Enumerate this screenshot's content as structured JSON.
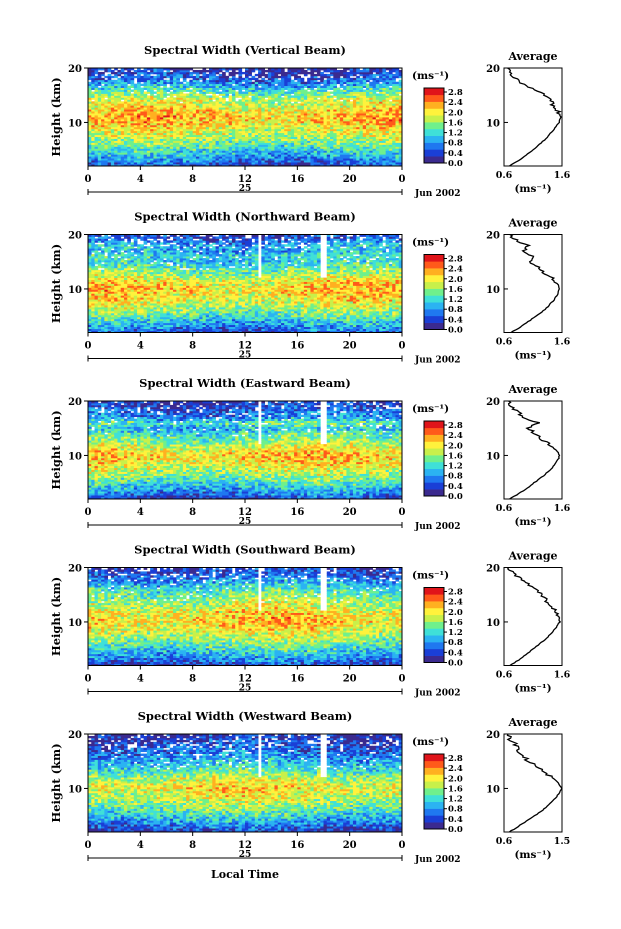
{
  "figure": {
    "xlabel_bottom": "Local Time",
    "date_label": "Jun 2002",
    "day_label": "25",
    "ylabel": "Height (km)",
    "units_label": "(ms⁻¹)",
    "avg_title": "Average",
    "avg_xlabel": "(ms⁻¹)",
    "colorbar_ticks": [
      "2.8",
      "2.4",
      "2.0",
      "1.6",
      "1.2",
      "0.8",
      "0.4",
      "0.0"
    ],
    "colormap": [
      "#3b2a8f",
      "#1a3fd6",
      "#1f78f0",
      "#2bb3f2",
      "#3fe0d8",
      "#6ff08c",
      "#c8f04a",
      "#fff23c",
      "#ffb020",
      "#ff5a1a",
      "#e0141a"
    ]
  },
  "chart_data": [
    {
      "type": "heatmap",
      "title": "Spectral Width (Vertical Beam)",
      "x_ticks": [
        "0",
        "4",
        "8",
        "12",
        "16",
        "20",
        "0"
      ],
      "xlim": [
        0,
        24
      ],
      "y_ticks": [
        "20",
        "10"
      ],
      "ylim": [
        2,
        20
      ],
      "clim": [
        0.0,
        3.0
      ],
      "avg_profile": {
        "x_ticks": [
          "0.6",
          "1.6"
        ],
        "xlim": [
          0.6,
          1.6
        ],
        "y_ticks": [
          "20",
          "10"
        ],
        "height": [
          2,
          3,
          4,
          5,
          6,
          7,
          8,
          9,
          10,
          11,
          12,
          13,
          14,
          15,
          16,
          17,
          18,
          19,
          20
        ],
        "value": [
          0.7,
          0.85,
          0.98,
          1.1,
          1.22,
          1.32,
          1.4,
          1.48,
          1.55,
          1.58,
          1.54,
          1.45,
          1.42,
          1.3,
          1.12,
          0.95,
          0.8,
          0.7,
          0.66
        ]
      }
    },
    {
      "type": "heatmap",
      "title": "Spectral Width (Northward Beam)",
      "x_ticks": [
        "0",
        "4",
        "8",
        "12",
        "16",
        "20",
        "0"
      ],
      "xlim": [
        0,
        24
      ],
      "y_ticks": [
        "20",
        "10"
      ],
      "ylim": [
        2,
        20
      ],
      "clim": [
        0.0,
        3.0
      ],
      "avg_profile": {
        "x_ticks": [
          "0.6",
          "1.6"
        ],
        "xlim": [
          0.6,
          1.6
        ],
        "y_ticks": [
          "20",
          "10"
        ],
        "height": [
          2,
          3,
          4,
          5,
          6,
          7,
          8,
          9,
          10,
          11,
          12,
          13,
          14,
          15,
          16,
          17,
          18,
          19,
          20
        ],
        "value": [
          0.72,
          0.88,
          1.02,
          1.15,
          1.28,
          1.38,
          1.46,
          1.52,
          1.56,
          1.52,
          1.42,
          1.28,
          1.18,
          1.05,
          1.1,
          0.95,
          1.0,
          0.8,
          0.7
        ]
      }
    },
    {
      "type": "heatmap",
      "title": "Spectral Width (Eastward Beam)",
      "x_ticks": [
        "0",
        "4",
        "8",
        "12",
        "16",
        "20",
        "0"
      ],
      "xlim": [
        0,
        24
      ],
      "y_ticks": [
        "20",
        "10"
      ],
      "ylim": [
        2,
        20
      ],
      "clim": [
        0.0,
        3.0
      ],
      "avg_profile": {
        "x_ticks": [
          "0.6",
          "1.6"
        ],
        "xlim": [
          0.6,
          1.6
        ],
        "y_ticks": [
          "20",
          "10"
        ],
        "height": [
          2,
          3,
          4,
          5,
          6,
          7,
          8,
          9,
          10,
          11,
          12,
          13,
          14,
          15,
          16,
          17,
          18,
          19,
          20
        ],
        "value": [
          0.7,
          0.86,
          1.0,
          1.12,
          1.25,
          1.36,
          1.45,
          1.52,
          1.56,
          1.5,
          1.38,
          1.25,
          1.15,
          1.0,
          1.2,
          0.9,
          0.85,
          0.72,
          0.68
        ]
      }
    },
    {
      "type": "heatmap",
      "title": "Spectral Width (Southward Beam)",
      "x_ticks": [
        "0",
        "4",
        "8",
        "12",
        "16",
        "20",
        "0"
      ],
      "xlim": [
        0,
        24
      ],
      "y_ticks": [
        "20",
        "10"
      ],
      "ylim": [
        2,
        20
      ],
      "clim": [
        0.0,
        3.0
      ],
      "avg_profile": {
        "x_ticks": [
          "0.6",
          "1.6"
        ],
        "xlim": [
          0.6,
          1.6
        ],
        "y_ticks": [
          "20",
          "10"
        ],
        "height": [
          2,
          3,
          4,
          5,
          6,
          7,
          8,
          9,
          10,
          11,
          12,
          13,
          14,
          15,
          16,
          17,
          18,
          19,
          20
        ],
        "value": [
          0.7,
          0.85,
          0.98,
          1.1,
          1.22,
          1.33,
          1.42,
          1.5,
          1.56,
          1.55,
          1.48,
          1.4,
          1.32,
          1.25,
          1.15,
          1.0,
          0.88,
          0.75,
          0.68
        ]
      }
    },
    {
      "type": "heatmap",
      "title": "Spectral Width (Westward Beam)",
      "x_ticks": [
        "0",
        "4",
        "8",
        "12",
        "16",
        "20",
        "0"
      ],
      "xlim": [
        0,
        24
      ],
      "y_ticks": [
        "20",
        "10"
      ],
      "ylim": [
        2,
        20
      ],
      "clim": [
        0.0,
        3.0
      ],
      "avg_profile": {
        "x_ticks": [
          "0.6",
          "1.5"
        ],
        "xlim": [
          0.6,
          1.5
        ],
        "y_ticks": [
          "20",
          "10"
        ],
        "height": [
          2,
          3,
          4,
          5,
          6,
          7,
          8,
          9,
          10,
          11,
          12,
          13,
          14,
          15,
          16,
          17,
          18,
          19,
          20
        ],
        "value": [
          0.68,
          0.82,
          0.95,
          1.08,
          1.2,
          1.3,
          1.38,
          1.45,
          1.5,
          1.45,
          1.35,
          1.22,
          1.1,
          0.98,
          0.9,
          0.8,
          0.78,
          0.7,
          0.66
        ]
      }
    }
  ]
}
